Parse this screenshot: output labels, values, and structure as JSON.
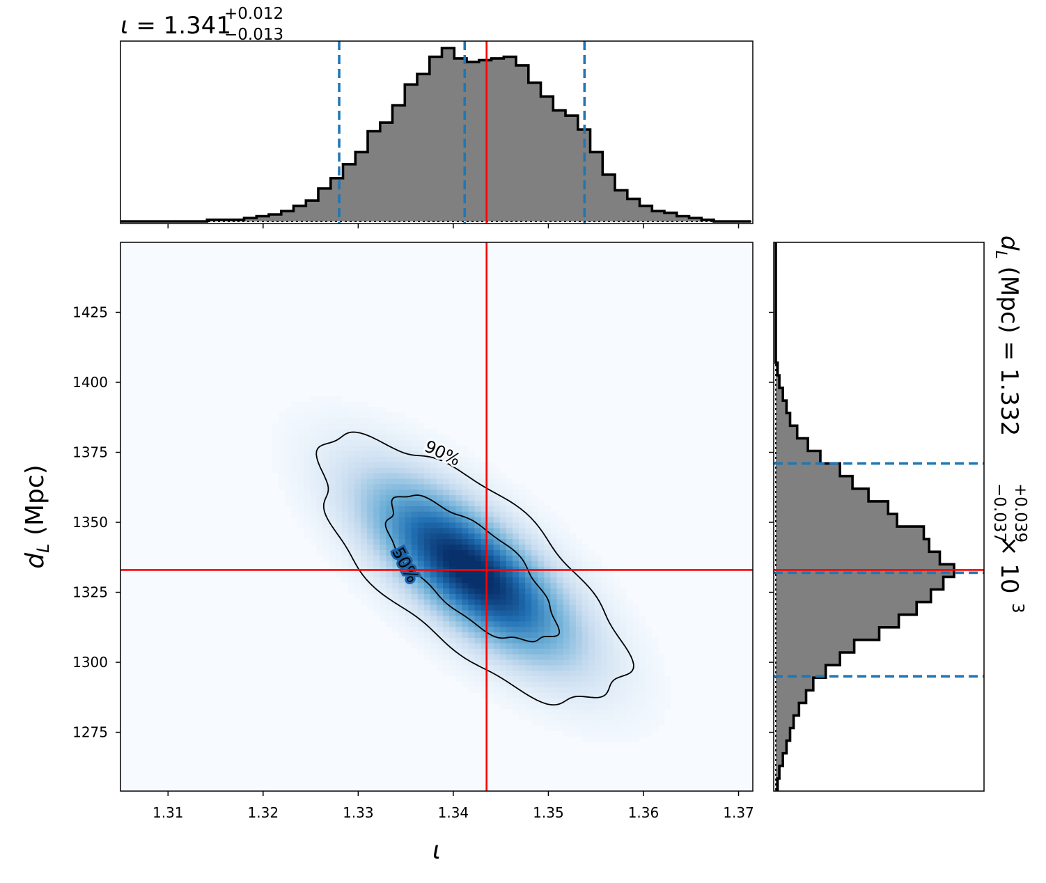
{
  "chart_data": {
    "type": "corner-2d",
    "title_top": {
      "symbol": "ι",
      "value": "1.341",
      "plus": "+0.012",
      "minus": "−0.013"
    },
    "title_right": {
      "symbol": "d",
      "subscript": "L",
      "label": "(Mpc) = 1.332",
      "plus": "+0.039",
      "minus": "−0.037",
      "scale": "× 10",
      "exponent": "3"
    },
    "xlabel": "ι",
    "ylabel": {
      "symbol": "d",
      "subscript": "L",
      "unit": "(Mpc)"
    },
    "xlim": [
      1.305,
      1.3715
    ],
    "ylim": [
      1254,
      1450
    ],
    "x_ticks": [
      "1.31",
      "1.32",
      "1.33",
      "1.34",
      "1.35",
      "1.36",
      "1.37"
    ],
    "y_ticks": [
      "1275",
      "1300",
      "1325",
      "1350",
      "1375",
      "1400",
      "1425"
    ],
    "truth": {
      "x": 1.3435,
      "y": 1333
    },
    "x_quantiles": [
      1.328,
      1.3412,
      1.3538
    ],
    "y_quantiles": [
      1295,
      1332,
      1371
    ],
    "contour_labels": [
      "90%",
      "50%"
    ],
    "contour_levels": [
      0.9,
      0.5
    ],
    "density": {
      "center_x": 1.3418,
      "center_y": 1333,
      "sigma_x": 0.0075,
      "sigma_y": 22,
      "rho": -0.72
    },
    "hist_x": {
      "edges_start": 1.305,
      "bin_width": 0.0013,
      "values": [
        0.0,
        0.0,
        0.0,
        0.0,
        0.0,
        0.0,
        0.0,
        0.01,
        0.01,
        0.01,
        0.02,
        0.03,
        0.04,
        0.06,
        0.09,
        0.12,
        0.19,
        0.25,
        0.33,
        0.4,
        0.52,
        0.57,
        0.67,
        0.79,
        0.85,
        0.95,
        1.0,
        0.94,
        0.92,
        0.93,
        0.94,
        0.95,
        0.9,
        0.8,
        0.72,
        0.64,
        0.61,
        0.53,
        0.4,
        0.27,
        0.18,
        0.13,
        0.09,
        0.06,
        0.05,
        0.03,
        0.02,
        0.01,
        0.0,
        0.0,
        0.0
      ]
    },
    "hist_y": {
      "edges_start": 1254,
      "bin_width": 4.5,
      "values": [
        0.01,
        0.02,
        0.04,
        0.06,
        0.08,
        0.1,
        0.13,
        0.17,
        0.21,
        0.28,
        0.36,
        0.44,
        0.58,
        0.69,
        0.79,
        0.87,
        0.94,
        1.0,
        0.92,
        0.86,
        0.83,
        0.68,
        0.63,
        0.52,
        0.43,
        0.36,
        0.25,
        0.18,
        0.12,
        0.08,
        0.06,
        0.04,
        0.02,
        0.01,
        0.0,
        0.0,
        0.0,
        0.0,
        0.0,
        0.0,
        0.0,
        0.0,
        0.0,
        0.0
      ]
    },
    "colors": {
      "hist_fill": "#808080",
      "truth": "#ff0000",
      "quantile": "#1f77b4",
      "cmap_low": "#f7fbff",
      "cmap_high": "#08306b"
    }
  }
}
